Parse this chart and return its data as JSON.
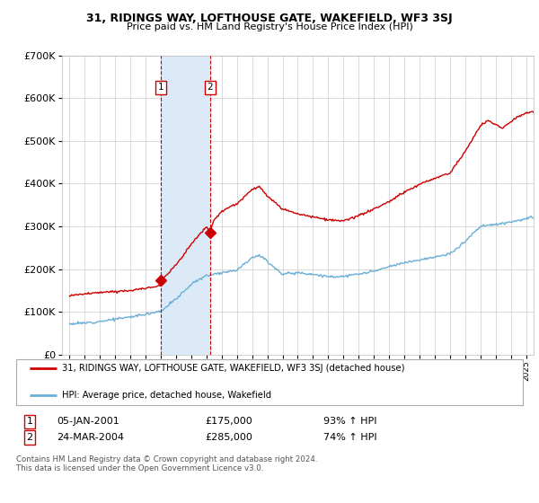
{
  "title": "31, RIDINGS WAY, LOFTHOUSE GATE, WAKEFIELD, WF3 3SJ",
  "subtitle": "Price paid vs. HM Land Registry's House Price Index (HPI)",
  "legend_line1": "31, RIDINGS WAY, LOFTHOUSE GATE, WAKEFIELD, WF3 3SJ (detached house)",
  "legend_line2": "HPI: Average price, detached house, Wakefield",
  "transaction1_label": "1",
  "transaction1_date": "05-JAN-2001",
  "transaction1_price": "£175,000",
  "transaction1_hpi": "93% ↑ HPI",
  "transaction2_label": "2",
  "transaction2_date": "24-MAR-2004",
  "transaction2_price": "£285,000",
  "transaction2_hpi": "74% ↑ HPI",
  "footnote": "Contains HM Land Registry data © Crown copyright and database right 2024.\nThis data is licensed under the Open Government Licence v3.0.",
  "hpi_line_color": "#6baed6",
  "price_line_color": "#cc0000",
  "shaded_region_color": "#dce9f7",
  "background_color": "#ffffff",
  "grid_color": "#cccccc",
  "ylim": [
    0,
    700000
  ],
  "yticks": [
    0,
    100000,
    200000,
    300000,
    400000,
    500000,
    600000,
    700000
  ],
  "ytick_labels": [
    "£0",
    "£100K",
    "£200K",
    "£300K",
    "£400K",
    "£500K",
    "£600K",
    "£700K"
  ],
  "transaction1_x": 2001.01,
  "transaction1_y": 175000,
  "transaction2_x": 2004.23,
  "transaction2_y": 285000,
  "shade_x_start": 2001.01,
  "shade_x_end": 2004.23,
  "xlim_min": 1994.5,
  "xlim_max": 2025.5
}
